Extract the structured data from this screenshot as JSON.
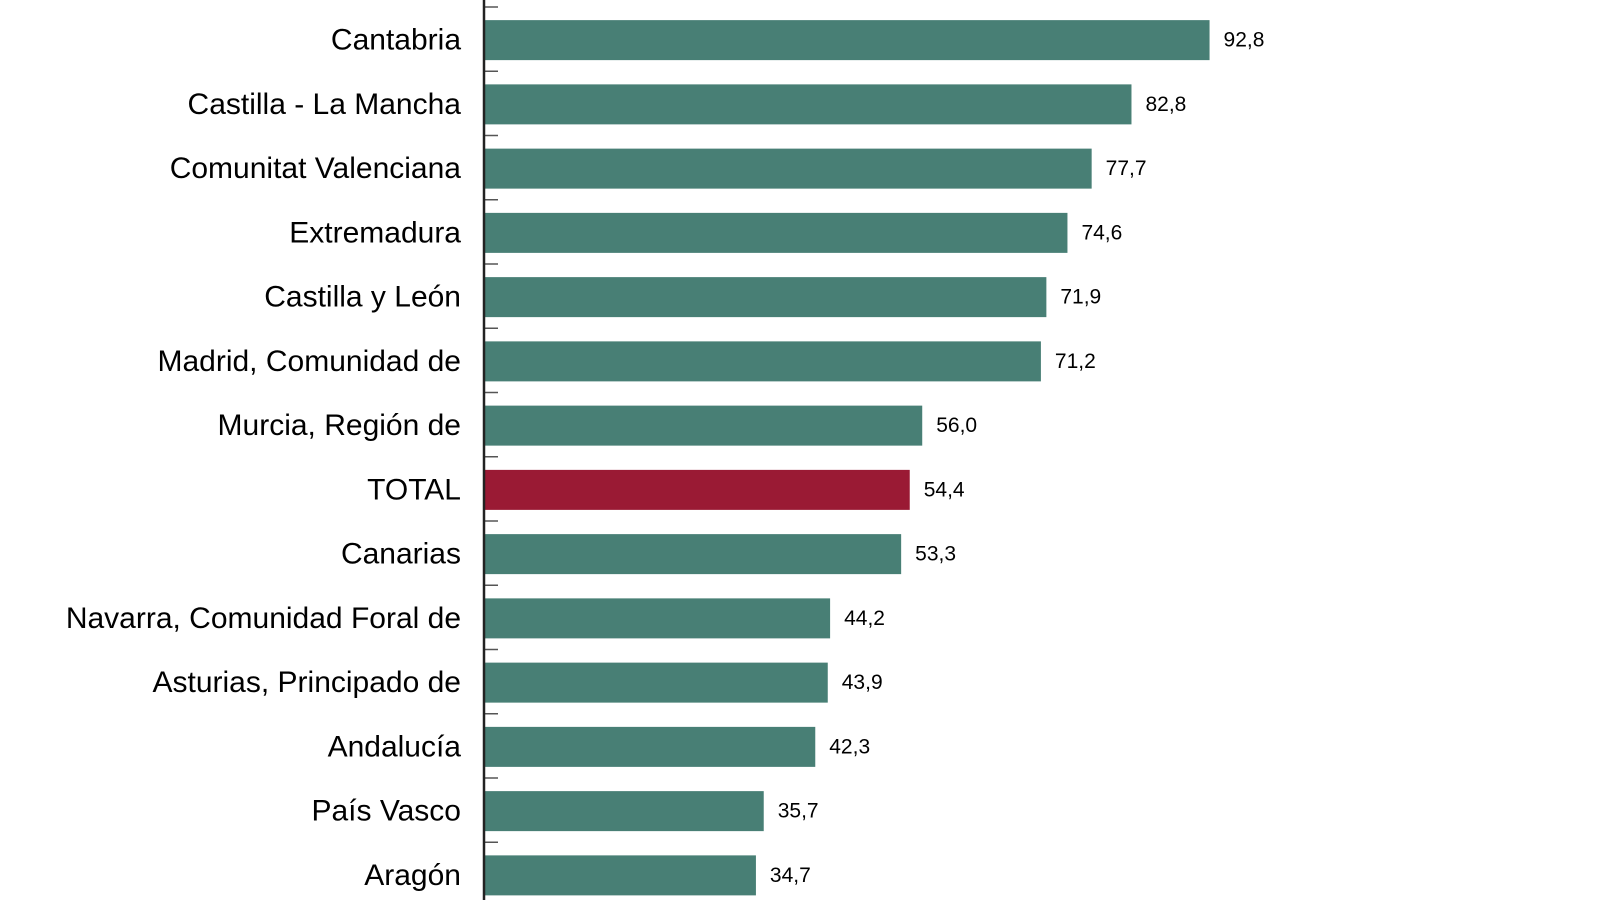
{
  "chart_data": {
    "type": "bar",
    "orientation": "horizontal",
    "categories": [
      "Cantabria",
      "Castilla - La Mancha",
      "Comunitat Valenciana",
      "Extremadura",
      "Castilla y León",
      "Madrid, Comunidad de",
      "Murcia, Región de",
      "TOTAL",
      "Canarias",
      "Navarra, Comunidad Foral de",
      "Asturias, Principado de",
      "Andalucía",
      "País Vasco",
      "Aragón"
    ],
    "values": [
      92.8,
      82.8,
      77.7,
      74.6,
      71.9,
      71.2,
      56.0,
      54.4,
      53.3,
      44.2,
      43.9,
      42.3,
      35.7,
      34.7
    ],
    "value_labels": [
      "92,8",
      "82,8",
      "77,7",
      "74,6",
      "71,9",
      "71,2",
      "56,0",
      "54,4",
      "53,3",
      "44,2",
      "43,9",
      "42,3",
      "35,7",
      "34,7"
    ],
    "highlight_category": "TOTAL",
    "colors": {
      "bar": "#487F75",
      "highlight": "#9A1A34",
      "axis": "#222222"
    },
    "xlim": [
      0,
      130
    ],
    "grid": false,
    "legend": "none",
    "title": "",
    "xlabel": "",
    "ylabel": ""
  }
}
